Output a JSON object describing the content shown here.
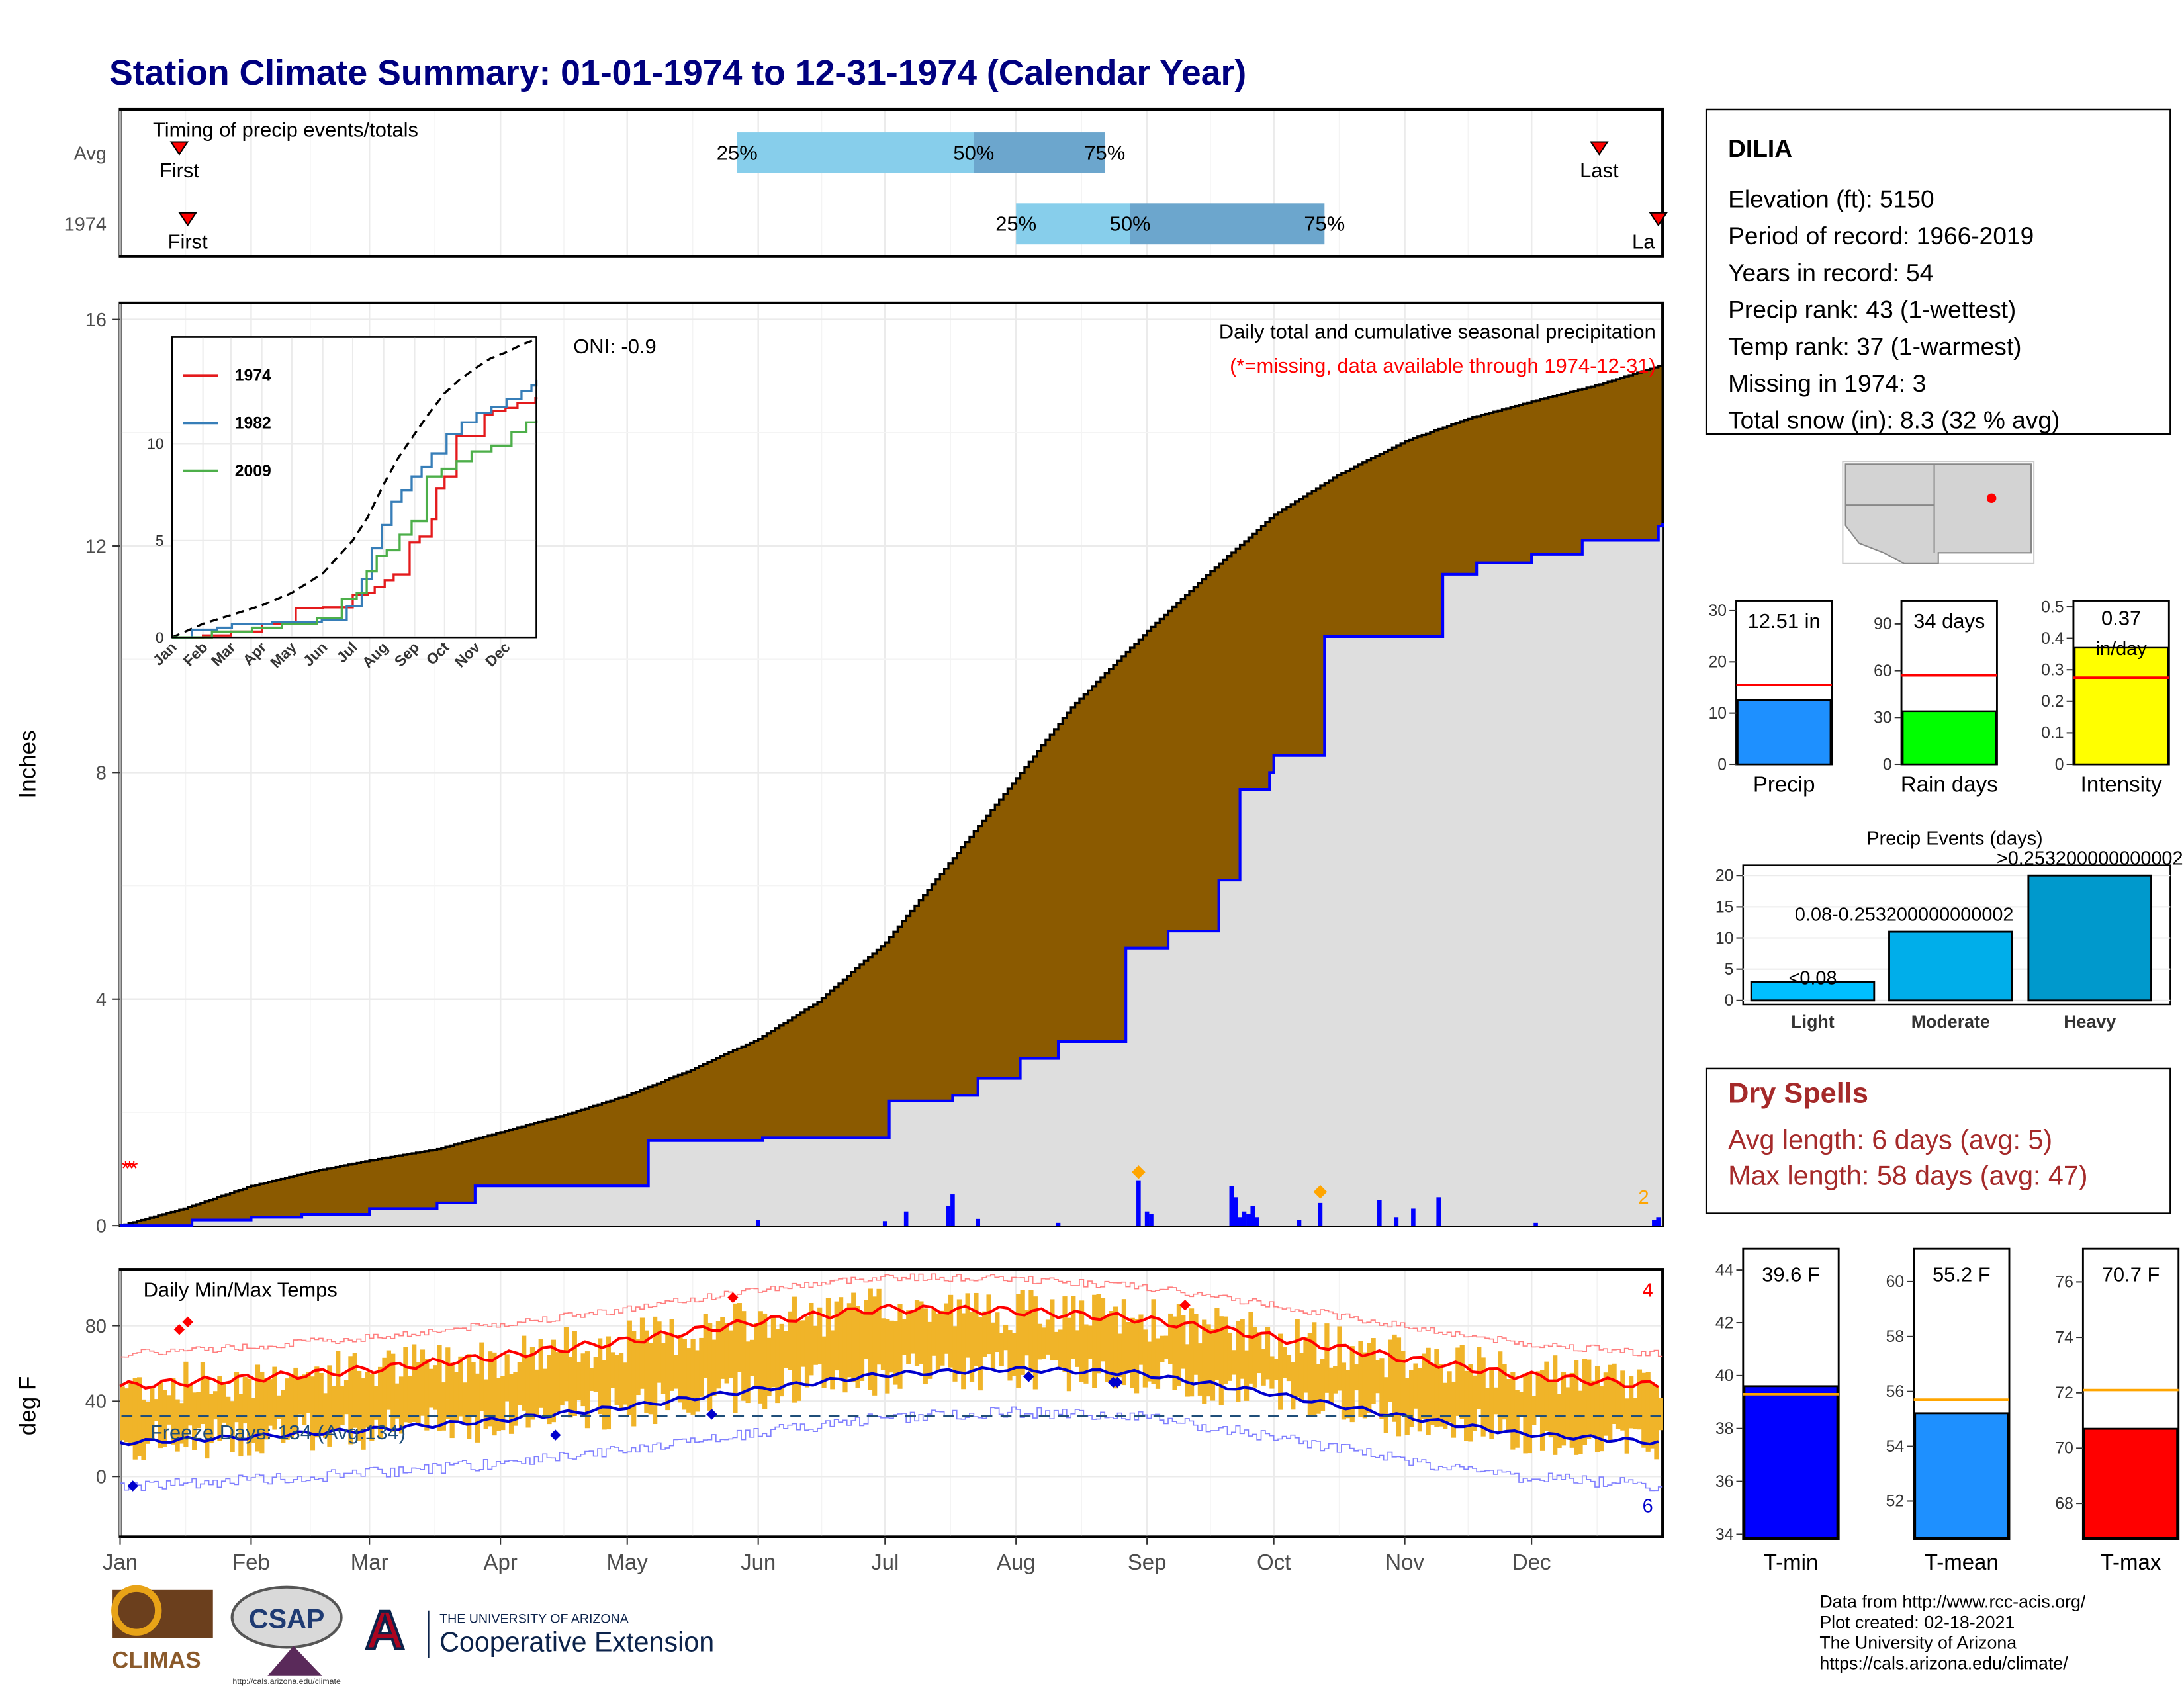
{
  "title": "Station Climate Summary: 01-01-1974 to 12-31-1974 (Calendar Year)",
  "months": [
    "Jan",
    "Feb",
    "Mar",
    "Apr",
    "May",
    "Jun",
    "Jul",
    "Aug",
    "Sep",
    "Oct",
    "Nov",
    "Dec"
  ],
  "station": {
    "name": "DILIA",
    "lines": [
      "Elevation (ft): 5150",
      "Period of record: 1966-2019",
      "Years in record: 54",
      "Precip rank: 43 (1-wettest)",
      "Temp rank: 37 (1-warmest)",
      "Missing in 1974: 3",
      "Total snow (in): 8.3 (32 % avg)"
    ]
  },
  "footer": [
    "Data from http://www.rcc-acis.org/",
    "Plot created: 02-18-2021",
    "The University of Arizona",
    "https://cals.arizona.edu/climate/"
  ],
  "logos": {
    "climas": "CLIMAS",
    "csap": "CSAP",
    "csap_url": "http://cals.arizona.edu/climate",
    "ua_top": "THE UNIVERSITY OF ARIZONA",
    "ua_bottom": "Cooperative Extension"
  },
  "colors": {
    "accent_title": "#00007f",
    "precip_brown": "#8B5A00",
    "cum_blue": "#0000ff",
    "avg_fill": "#dedede",
    "tmax": "#ff0000",
    "tmin": "#0000cd",
    "range": "#f0b429",
    "dry": "#a52a2a"
  },
  "chart_data": [
    {
      "id": "timing",
      "type": "bar",
      "title": "Timing of precip events/totals",
      "rows": [
        {
          "label": "Avg",
          "first": "Jan 15",
          "q25": "May 27",
          "q50": "Jul 22",
          "q75": "Aug 22",
          "last": "Dec 17",
          "first_label": "First",
          "last_label": "Last"
        },
        {
          "label": "1974",
          "first": "Jan 17",
          "q25": "Aug 1",
          "q50": "Aug 28",
          "q75": "Oct 13",
          "last": "Dec 31",
          "first_label": "First",
          "last_label": "La"
        }
      ],
      "pct_labels": [
        "25%",
        "50%",
        "75%"
      ]
    },
    {
      "id": "precip",
      "type": "area",
      "title": "Daily total and cumulative seasonal precipitation",
      "subtitle": "(*=missing, data available through 1974-12-31)",
      "annotation": "ONI: -0.9",
      "corner_count": "2",
      "ylabel": "Inches",
      "ylim": [
        0,
        16
      ],
      "yticks": [
        0,
        4,
        8,
        12,
        16
      ],
      "avg_cumulative": {
        "x": [
          0,
          15,
          31,
          45,
          59,
          75,
          90,
          105,
          120,
          135,
          151,
          165,
          181,
          195,
          212,
          225,
          243,
          258,
          273,
          288,
          304,
          319,
          334,
          350,
          365
        ],
        "y": [
          0,
          0.3,
          0.7,
          0.95,
          1.15,
          1.35,
          1.65,
          1.95,
          2.3,
          2.75,
          3.3,
          3.95,
          5.0,
          6.3,
          7.9,
          9.15,
          10.5,
          11.55,
          12.55,
          13.25,
          13.85,
          14.25,
          14.55,
          14.85,
          15.2
        ]
      },
      "obs_cumulative": {
        "x": [
          0,
          10,
          17,
          30,
          31,
          42,
          43,
          58,
          59,
          75,
          83,
          84,
          90,
          124,
          125,
          151,
          152,
          181,
          182,
          196,
          197,
          202,
          203,
          212,
          213,
          221,
          222,
          237,
          238,
          247,
          248,
          259,
          260,
          264,
          265,
          272,
          273,
          284,
          285,
          312,
          313,
          320,
          321,
          333,
          334,
          345,
          346,
          363,
          364,
          365
        ],
        "y": [
          0,
          0,
          0.1,
          0.1,
          0.15,
          0.15,
          0.2,
          0.2,
          0.3,
          0.4,
          0.4,
          0.7,
          0.7,
          0.7,
          1.5,
          1.5,
          1.55,
          1.55,
          2.2,
          2.2,
          2.3,
          2.3,
          2.6,
          2.6,
          2.95,
          2.95,
          3.25,
          3.25,
          4.9,
          4.9,
          5.2,
          5.2,
          6.1,
          6.1,
          7.7,
          8.0,
          8.3,
          8.3,
          10.4,
          10.4,
          11.5,
          11.5,
          11.7,
          11.7,
          11.85,
          11.85,
          12.1,
          12.1,
          12.35,
          12.4
        ]
      },
      "daily": {
        "days": [
          151,
          181,
          186,
          196,
          197,
          203,
          222,
          241,
          243,
          244,
          263,
          264,
          265,
          266,
          267,
          268,
          269,
          279,
          284,
          298,
          302,
          306,
          312,
          312,
          335,
          363,
          364
        ],
        "values": [
          0.1,
          0.08,
          0.25,
          0.35,
          0.55,
          0.12,
          0.05,
          0.8,
          0.25,
          0.2,
          0.7,
          0.5,
          0.15,
          0.25,
          0.2,
          0.35,
          0.15,
          0.1,
          0.4,
          0.45,
          0.15,
          0.3,
          0.1,
          0.5,
          0.05,
          0.1,
          0.15
        ]
      },
      "missing_days": [
        1,
        2,
        3
      ]
    },
    {
      "id": "inset",
      "type": "line",
      "yticks": [
        0,
        5,
        10
      ],
      "ylim": [
        0,
        15.5
      ],
      "months": [
        "Jan",
        "Feb",
        "Mar",
        "Apr",
        "May",
        "Jun",
        "Jul",
        "Aug",
        "Sep",
        "Oct",
        "Nov",
        "Dec"
      ],
      "avg": {
        "x": [
          0,
          31,
          59,
          90,
          120,
          151,
          181,
          196,
          212,
          227,
          243,
          258,
          273,
          288,
          304,
          319,
          334,
          350,
          365
        ],
        "y": [
          0,
          0.7,
          1.15,
          1.65,
          2.3,
          3.3,
          5.0,
          6.2,
          7.9,
          9.3,
          10.5,
          11.6,
          12.6,
          13.3,
          13.9,
          14.4,
          14.7,
          15.1,
          15.4
        ]
      },
      "series": [
        {
          "name": "1974",
          "color": "#e41a1c",
          "x": [
            0,
            31,
            59,
            90,
            124,
            151,
            181,
            196,
            203,
            213,
            222,
            238,
            248,
            260,
            265,
            273,
            285,
            313,
            321,
            334,
            346,
            364,
            365
          ],
          "y": [
            0,
            0.1,
            0.3,
            0.7,
            1.5,
            1.55,
            2.2,
            2.3,
            2.6,
            2.95,
            3.25,
            4.9,
            5.2,
            6.1,
            7.7,
            8.3,
            10.4,
            11.5,
            11.7,
            11.85,
            12.1,
            12.35,
            12.4
          ]
        },
        {
          "name": "1982",
          "color": "#377eb8",
          "x": [
            0,
            20,
            45,
            60,
            100,
            150,
            175,
            190,
            200,
            210,
            220,
            230,
            240,
            250,
            260,
            275,
            290,
            305,
            320,
            335,
            350,
            360,
            365
          ],
          "y": [
            0,
            0.4,
            0.5,
            0.7,
            0.8,
            0.9,
            1.6,
            3.0,
            4.6,
            5.8,
            7.0,
            7.6,
            8.3,
            8.8,
            9.5,
            10.5,
            11.1,
            11.6,
            11.9,
            12.3,
            12.7,
            13.0,
            13.3
          ]
        },
        {
          "name": "2009",
          "color": "#4daf4a",
          "x": [
            0,
            40,
            80,
            110,
            145,
            170,
            185,
            195,
            205,
            215,
            228,
            240,
            255,
            270,
            285,
            300,
            320,
            340,
            355,
            365
          ],
          "y": [
            0,
            0.3,
            0.5,
            0.7,
            1.0,
            2.0,
            2.3,
            3.4,
            4.2,
            4.5,
            5.3,
            6.0,
            8.3,
            8.7,
            9.1,
            9.6,
            9.9,
            10.6,
            11.1,
            11.2
          ]
        }
      ]
    },
    {
      "id": "stats",
      "type": "bar",
      "panels": [
        {
          "label": "Precip",
          "value": 12.51,
          "value_label": "12.51 in",
          "avg": 15.5,
          "ylim": [
            0,
            32
          ],
          "yticks": [
            0,
            10,
            20,
            30
          ],
          "color": "#1e90ff"
        },
        {
          "label": "Rain days",
          "value": 34,
          "value_label": "34 days",
          "avg": 57,
          "ylim": [
            0,
            105
          ],
          "yticks": [
            0,
            30,
            60,
            90
          ],
          "color": "#00ff00"
        },
        {
          "label": "Intensity",
          "value": 0.37,
          "value_label": "0.37 in/day",
          "avg": 0.275,
          "ylim": [
            0,
            0.52
          ],
          "yticks": [
            0.0,
            0.1,
            0.2,
            0.3,
            0.4,
            0.5
          ],
          "color": "#ffff00"
        }
      ]
    },
    {
      "id": "events",
      "type": "bar",
      "title": "Precip Events (days)",
      "categories": [
        "Light",
        "Moderate",
        "Heavy"
      ],
      "values": [
        3,
        11,
        20
      ],
      "labels": [
        "<0.08",
        "0.08-0.253200000000002",
        ">0.253200000000002"
      ],
      "ylim": [
        0,
        21
      ],
      "yticks": [
        0,
        5,
        10,
        15,
        20
      ],
      "colors": [
        "#00bfff",
        "#00aeea",
        "#0099cc"
      ]
    },
    {
      "id": "temps",
      "type": "line",
      "title": "Daily Min/Max Temps",
      "ylabel": "deg F",
      "ylim": [
        -32,
        110
      ],
      "yticks": [
        0,
        40,
        80
      ],
      "freeze_label": "Freeze Days: 134 (Avg:134)",
      "freeze_line": 32,
      "count_top": "4",
      "count_bottom": "6",
      "avg_max": {
        "x": [
          0,
          30,
          60,
          90,
          120,
          150,
          180,
          210,
          240,
          270,
          300,
          330,
          365
        ],
        "y": [
          48,
          52,
          57,
          64,
          72,
          82,
          89,
          88,
          84,
          75,
          64,
          54,
          48
        ]
      },
      "avg_min": {
        "x": [
          0,
          30,
          60,
          90,
          120,
          150,
          180,
          210,
          240,
          270,
          300,
          330,
          365
        ],
        "y": [
          18,
          21,
          25,
          30,
          37,
          46,
          54,
          57,
          55,
          45,
          33,
          23,
          18
        ]
      },
      "max_highlights": [
        {
          "x": 14,
          "y": 78
        },
        {
          "x": 16,
          "y": 82
        },
        {
          "x": 145,
          "y": 95
        },
        {
          "x": 252,
          "y": 91
        }
      ],
      "min_highlights": [
        {
          "x": 3,
          "y": -5
        },
        {
          "x": 103,
          "y": 22
        },
        {
          "x": 140,
          "y": 33
        },
        {
          "x": 215,
          "y": 53
        },
        {
          "x": 235,
          "y": 50
        },
        {
          "x": 236,
          "y": 50
        }
      ]
    },
    {
      "id": "temp_stats",
      "type": "bar",
      "panels": [
        {
          "label": "T-min",
          "value": 39.6,
          "value_label": "39.6 F",
          "avg": 39.3,
          "ylim": [
            33.8,
            44.8
          ],
          "yticks": [
            34,
            36,
            38,
            40,
            42,
            44
          ],
          "color": "#0000ff"
        },
        {
          "label": "T-mean",
          "value": 55.2,
          "value_label": "55.2 F",
          "avg": 55.7,
          "ylim": [
            50.6,
            61.2
          ],
          "yticks": [
            52,
            54,
            56,
            58,
            60
          ],
          "color": "#1e90ff"
        },
        {
          "label": "T-max",
          "value": 70.7,
          "value_label": "70.7 F",
          "avg": 72.1,
          "ylim": [
            66.7,
            77.2
          ],
          "yticks": [
            68,
            70,
            72,
            74,
            76
          ],
          "color": "#ff0000"
        }
      ]
    }
  ],
  "dry_spells": {
    "title": "Dry Spells",
    "avg": "Avg length: 6 days (avg: 5)",
    "max": "Max length: 58 days (avg: 47)"
  }
}
